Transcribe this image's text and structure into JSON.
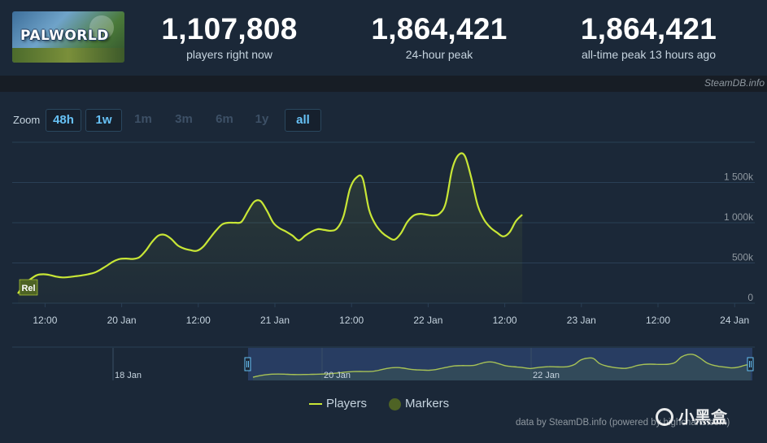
{
  "header": {
    "game_logo_text": "PALWORLD",
    "stats": [
      {
        "value": "1,107,808",
        "label": "players right now"
      },
      {
        "value": "1,864,421",
        "label": "24-hour peak"
      },
      {
        "value": "1,864,421",
        "label": "all-time peak 13 hours ago"
      }
    ],
    "source": "SteamDB.info"
  },
  "zoom": {
    "label": "Zoom",
    "options": [
      {
        "label": "48h",
        "active": true
      },
      {
        "label": "1w",
        "active": true
      },
      {
        "label": "1m",
        "active": false
      },
      {
        "label": "3m",
        "active": false
      },
      {
        "label": "6m",
        "active": false
      },
      {
        "label": "1y",
        "active": false
      },
      {
        "label": "all",
        "active": true
      }
    ]
  },
  "chart_data": {
    "type": "line",
    "series": [
      {
        "name": "Players",
        "color": "#c8e636",
        "points": [
          [
            "19 Jan 08:00",
            120000
          ],
          [
            "19 Jan 09:00",
            230000
          ],
          [
            "19 Jan 10:00",
            300000
          ],
          [
            "19 Jan 11:00",
            350000
          ],
          [
            "19 Jan 12:00",
            360000
          ],
          [
            "19 Jan 13:00",
            350000
          ],
          [
            "19 Jan 14:00",
            330000
          ],
          [
            "19 Jan 15:00",
            320000
          ],
          [
            "19 Jan 16:00",
            325000
          ],
          [
            "19 Jan 17:00",
            335000
          ],
          [
            "19 Jan 18:00",
            345000
          ],
          [
            "19 Jan 19:00",
            360000
          ],
          [
            "19 Jan 20:00",
            380000
          ],
          [
            "19 Jan 21:00",
            420000
          ],
          [
            "19 Jan 22:00",
            470000
          ],
          [
            "19 Jan 23:00",
            520000
          ],
          [
            "20 Jan 00:00",
            550000
          ],
          [
            "20 Jan 01:00",
            555000
          ],
          [
            "20 Jan 02:00",
            550000
          ],
          [
            "20 Jan 03:00",
            570000
          ],
          [
            "20 Jan 04:00",
            650000
          ],
          [
            "20 Jan 05:00",
            760000
          ],
          [
            "20 Jan 06:00",
            840000
          ],
          [
            "20 Jan 07:00",
            850000
          ],
          [
            "20 Jan 08:00",
            800000
          ],
          [
            "20 Jan 09:00",
            720000
          ],
          [
            "20 Jan 10:00",
            680000
          ],
          [
            "20 Jan 11:00",
            660000
          ],
          [
            "20 Jan 12:00",
            650000
          ],
          [
            "20 Jan 13:00",
            700000
          ],
          [
            "20 Jan 14:00",
            800000
          ],
          [
            "20 Jan 15:00",
            900000
          ],
          [
            "20 Jan 16:00",
            980000
          ],
          [
            "20 Jan 17:00",
            1000000
          ],
          [
            "20 Jan 18:00",
            1000000
          ],
          [
            "20 Jan 19:00",
            1010000
          ],
          [
            "20 Jan 20:00",
            1140000
          ],
          [
            "20 Jan 21:00",
            1260000
          ],
          [
            "20 Jan 22:00",
            1270000
          ],
          [
            "20 Jan 23:00",
            1150000
          ],
          [
            "21 Jan 00:00",
            1000000
          ],
          [
            "21 Jan 01:00",
            930000
          ],
          [
            "21 Jan 02:00",
            890000
          ],
          [
            "21 Jan 03:00",
            840000
          ],
          [
            "21 Jan 04:00",
            780000
          ],
          [
            "21 Jan 05:00",
            840000
          ],
          [
            "21 Jan 06:00",
            890000
          ],
          [
            "21 Jan 07:00",
            920000
          ],
          [
            "21 Jan 08:00",
            910000
          ],
          [
            "21 Jan 09:00",
            900000
          ],
          [
            "21 Jan 10:00",
            930000
          ],
          [
            "21 Jan 11:00",
            1080000
          ],
          [
            "21 Jan 12:00",
            1420000
          ],
          [
            "21 Jan 13:00",
            1560000
          ],
          [
            "21 Jan 14:00",
            1550000
          ],
          [
            "21 Jan 15:00",
            1160000
          ],
          [
            "21 Jan 16:00",
            980000
          ],
          [
            "21 Jan 17:00",
            880000
          ],
          [
            "21 Jan 18:00",
            820000
          ],
          [
            "21 Jan 19:00",
            790000
          ],
          [
            "21 Jan 20:00",
            870000
          ],
          [
            "21 Jan 21:00",
            1010000
          ],
          [
            "21 Jan 22:00",
            1090000
          ],
          [
            "21 Jan 23:00",
            1110000
          ],
          [
            "22 Jan 00:00",
            1100000
          ],
          [
            "22 Jan 01:00",
            1090000
          ],
          [
            "22 Jan 02:00",
            1110000
          ],
          [
            "22 Jan 03:00",
            1240000
          ],
          [
            "22 Jan 04:00",
            1660000
          ],
          [
            "22 Jan 05:00",
            1840000
          ],
          [
            "22 Jan 06:00",
            1830000
          ],
          [
            "22 Jan 07:00",
            1560000
          ],
          [
            "22 Jan 08:00",
            1220000
          ],
          [
            "22 Jan 09:00",
            1040000
          ],
          [
            "22 Jan 10:00",
            940000
          ],
          [
            "22 Jan 11:00",
            880000
          ],
          [
            "22 Jan 12:00",
            830000
          ],
          [
            "22 Jan 13:00",
            880000
          ],
          [
            "22 Jan 14:00",
            1020000
          ],
          [
            "22 Jan 15:00",
            1100000
          ]
        ]
      }
    ],
    "x_tick_labels": [
      "12:00",
      "20 Jan",
      "12:00",
      "21 Jan",
      "12:00",
      "22 Jan",
      "12:00",
      "23 Jan",
      "12:00",
      "24 Jan"
    ],
    "y_tick_labels": [
      "0",
      "500k",
      "1 000k",
      "1 500k"
    ],
    "ylim": [
      0,
      2000000
    ],
    "grid": true,
    "legend": [
      "Players",
      "Markers"
    ],
    "legend_position": "bottom-center",
    "marker_flag": "Rel",
    "navigator_labels": [
      "18 Jan",
      "20 Jan",
      "22 Jan"
    ]
  },
  "footer": {
    "credit": "data by SteamDB.info (powered by highcharts.com)",
    "brand": "小黑盒"
  }
}
